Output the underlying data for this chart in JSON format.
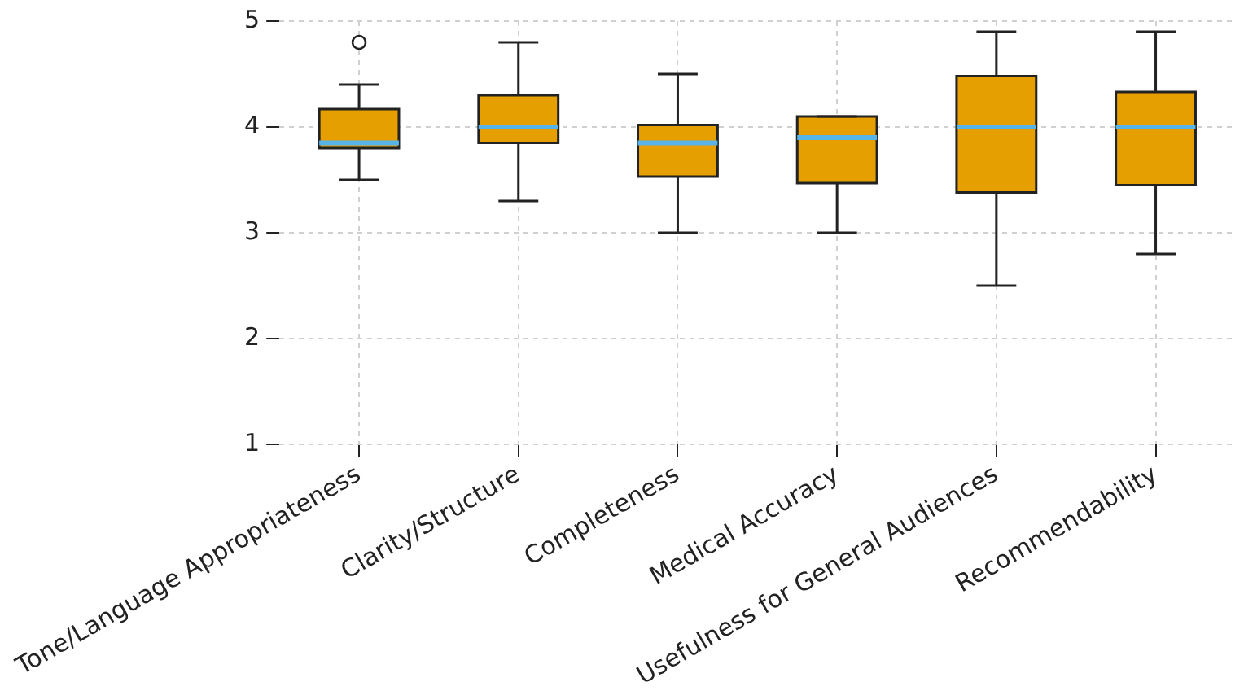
{
  "chart_data": {
    "type": "box",
    "categories": [
      "Tone/Language Appropriateness",
      "Clarity/Structure",
      "Completeness",
      "Medical Accuracy",
      "Usefulness for General Audiences",
      "Recommendability"
    ],
    "boxes": [
      {
        "low": 3.5,
        "q1": 3.8,
        "median": 3.85,
        "q3": 4.17,
        "high": 4.4,
        "outliers": [
          4.8
        ]
      },
      {
        "low": 3.3,
        "q1": 3.85,
        "median": 4.0,
        "q3": 4.3,
        "high": 4.8
      },
      {
        "low": 3.0,
        "q1": 3.53,
        "median": 3.85,
        "q3": 4.02,
        "high": 4.5
      },
      {
        "low": 3.0,
        "q1": 3.47,
        "median": 3.9,
        "q3": 4.1,
        "high": 4.1
      },
      {
        "low": 2.5,
        "q1": 3.38,
        "median": 4.0,
        "q3": 4.48,
        "high": 4.9
      },
      {
        "low": 2.8,
        "q1": 3.45,
        "median": 4.0,
        "q3": 4.33,
        "high": 4.9
      }
    ],
    "color": "#e69f00",
    "ylim": [
      1,
      5
    ],
    "yticks": [
      1,
      2,
      3,
      4,
      5
    ],
    "grid": true
  }
}
